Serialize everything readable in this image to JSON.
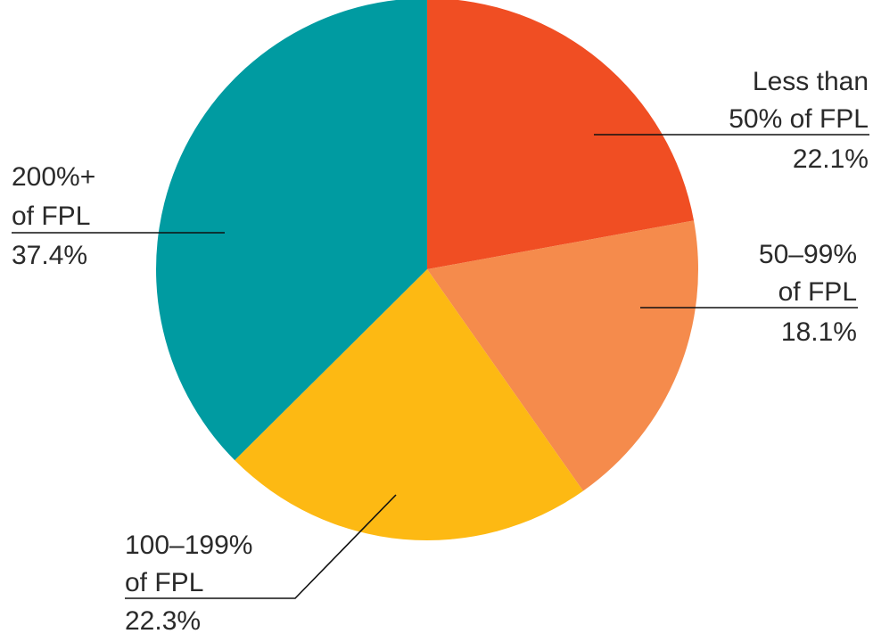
{
  "chart_data": {
    "type": "pie",
    "start": "top",
    "direction": "clockwise",
    "slices": [
      {
        "label_lines": [
          "Less than",
          "50% of FPL"
        ],
        "value": 22.1,
        "value_label": "22.1%",
        "color": "#F04E23"
      },
      {
        "label_lines": [
          "50–99%",
          "of FPL"
        ],
        "value": 18.1,
        "value_label": "18.1%",
        "color": "#F58B4C"
      },
      {
        "label_lines": [
          "100–199%",
          "of FPL"
        ],
        "value": 22.3,
        "value_label": "22.3%",
        "color": "#FDB913"
      },
      {
        "label_lines": [
          "200%+",
          "of FPL"
        ],
        "value": 37.4,
        "value_label": "37.4%",
        "color": "#009BA1"
      }
    ]
  }
}
